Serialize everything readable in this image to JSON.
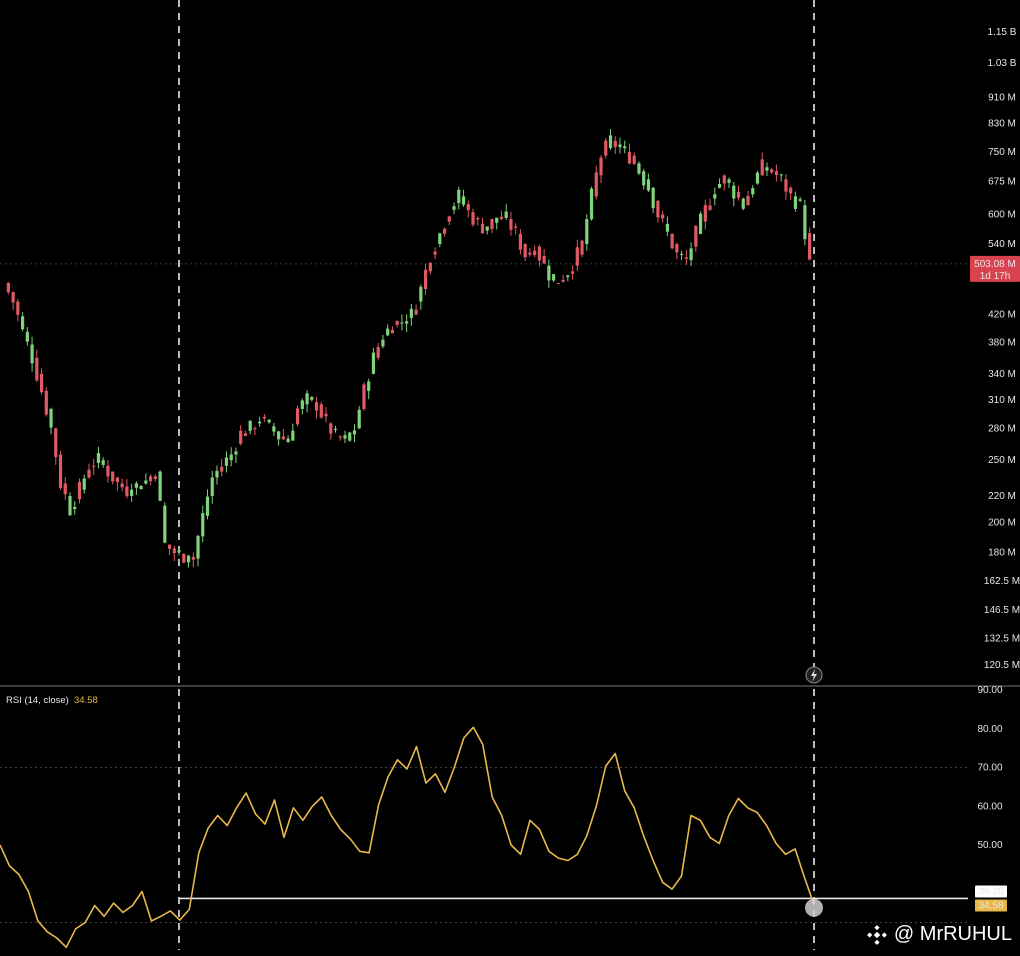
{
  "chart_data": [
    {
      "type": "candlestick",
      "scale": "log",
      "ylim": [
        115000000,
        1200000000
      ],
      "price_tick_labels": [
        "1.15 B",
        "1.03 B",
        "910 M",
        "830 M",
        "750 M",
        "675 M",
        "600 M",
        "540 M",
        "420 M",
        "380 M",
        "340 M",
        "310 M",
        "280 M",
        "250 M",
        "220 M",
        "200 M",
        "180 M",
        "162.5 M",
        "146.5 M",
        "132.5 M",
        "120.5 M"
      ],
      "price_tick_values": [
        1150000000,
        1030000000,
        910000000,
        830000000,
        750000000,
        675000000,
        600000000,
        540000000,
        420000000,
        380000000,
        340000000,
        310000000,
        280000000,
        250000000,
        220000000,
        200000000,
        180000000,
        162500000,
        146500000,
        132500000,
        120500000
      ],
      "close_path": [
        470,
        440,
        395,
        360,
        320,
        280,
        230,
        210,
        225,
        245,
        250,
        240,
        230,
        225,
        228,
        232,
        240,
        185,
        180,
        178,
        176,
        205,
        235,
        245,
        255,
        275,
        280,
        290,
        282,
        272,
        268,
        300,
        310,
        305,
        285,
        272,
        268,
        280,
        320,
        360,
        390,
        405,
        410,
        420,
        460,
        520,
        560,
        610,
        640,
        605,
        580,
        570,
        595,
        590,
        560,
        520,
        535,
        500,
        470,
        480,
        500,
        540,
        640,
        740,
        780,
        760,
        740,
        700,
        660,
        600,
        560,
        520,
        510,
        560,
        610,
        660,
        680,
        650,
        620,
        670,
        710,
        700,
        680,
        640,
        620,
        503
      ],
      "current_price_label": "503.08 M",
      "countdown_label": "1d 17h",
      "up_color": "#7fd37a",
      "down_color": "#e05a64"
    },
    {
      "type": "line",
      "series": [
        {
          "name": "RSI (14, close)",
          "last_value_label": "34.58",
          "values": [
            50,
            45,
            42,
            38,
            30,
            28,
            26,
            24,
            28,
            30,
            34,
            32,
            35,
            33,
            34,
            38,
            30,
            32,
            33,
            31,
            33,
            48,
            54,
            58,
            55,
            60,
            63,
            58,
            55,
            62,
            52,
            60,
            56,
            60,
            62,
            58,
            54,
            52,
            48,
            48,
            60,
            68,
            72,
            70,
            75,
            66,
            68,
            64,
            70,
            78,
            80,
            76,
            62,
            58,
            50,
            48,
            56,
            54,
            48,
            47,
            46,
            48,
            52,
            60,
            70,
            74,
            64,
            60,
            52,
            46,
            40,
            39,
            42,
            58,
            56,
            52,
            50,
            58,
            62,
            60,
            58,
            55,
            50,
            48,
            49,
            42,
            34.58
          ],
          "color": "#e9b84a"
        }
      ],
      "ylim": [
        26,
        90
      ],
      "y_tick_labels": [
        "90.00",
        "80.00",
        "70.00",
        "60.00",
        "50.00"
      ],
      "y_tick_values": [
        90,
        80,
        70,
        60,
        50
      ],
      "guide_line_label": "36.20",
      "guide_line_value": 36.2,
      "last_value_label": "34.58"
    }
  ],
  "watermark": {
    "text": "@ MrRUHUL",
    "icon": "binance-logo-icon"
  },
  "toolbar": {
    "lightning_icon": "lightning-icon"
  }
}
